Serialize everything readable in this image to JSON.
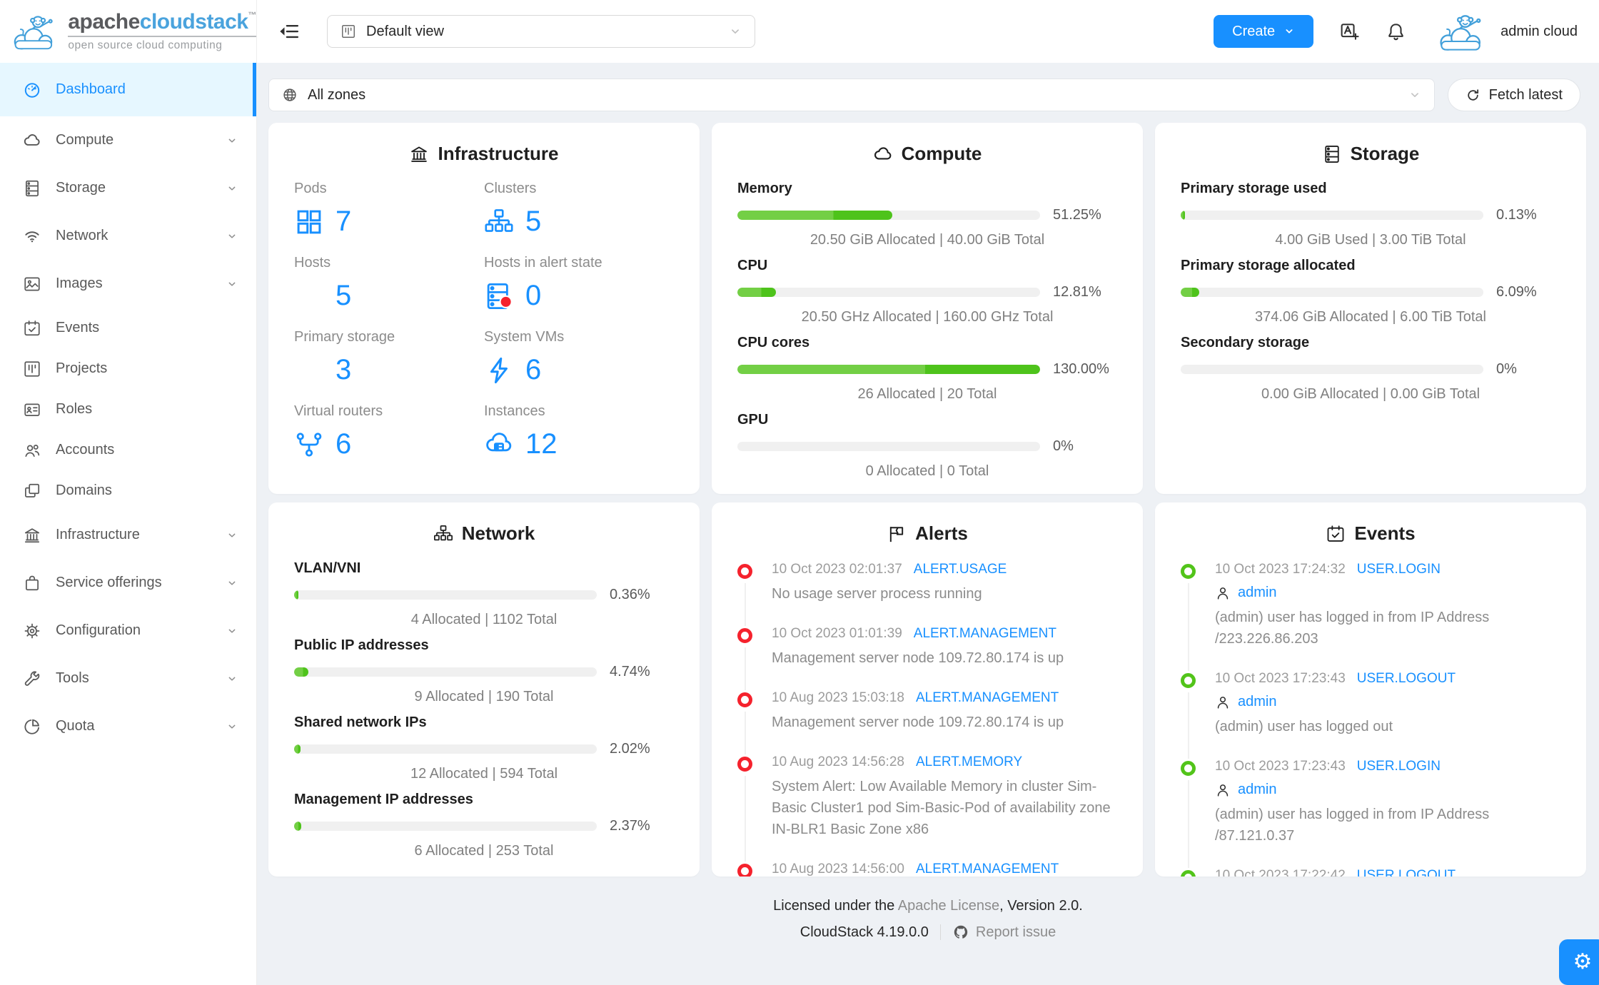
{
  "brand": {
    "name_a": "apache",
    "name_b": "cloudstack",
    "tm": "™",
    "subtitle": "open source cloud computing"
  },
  "topbar": {
    "view_select": "Default view",
    "create_label": "Create",
    "user_name": "admin cloud"
  },
  "zonebar": {
    "zone_select": "All zones",
    "fetch_label": "Fetch latest"
  },
  "sidebar": {
    "items": [
      {
        "label": "Dashboard",
        "icon": "dashboard",
        "active": true,
        "chevron": false
      },
      {
        "label": "Compute",
        "icon": "cloud",
        "chevron": true
      },
      {
        "label": "Storage",
        "icon": "database",
        "chevron": true
      },
      {
        "label": "Network",
        "icon": "wifi",
        "chevron": true
      },
      {
        "label": "Images",
        "icon": "image",
        "chevron": true
      },
      {
        "label": "Events",
        "icon": "calendar",
        "chevron": false
      },
      {
        "label": "Projects",
        "icon": "project",
        "chevron": false
      },
      {
        "label": "Roles",
        "icon": "idcard",
        "chevron": false
      },
      {
        "label": "Accounts",
        "icon": "team",
        "chevron": false
      },
      {
        "label": "Domains",
        "icon": "copy",
        "chevron": false
      },
      {
        "label": "Infrastructure",
        "icon": "bank",
        "chevron": true
      },
      {
        "label": "Service offerings",
        "icon": "bag",
        "chevron": true
      },
      {
        "label": "Configuration",
        "icon": "gear",
        "chevron": true
      },
      {
        "label": "Tools",
        "icon": "wrench",
        "chevron": true
      },
      {
        "label": "Quota",
        "icon": "pie",
        "chevron": true
      }
    ]
  },
  "cards": {
    "infrastructure": {
      "title": "Infrastructure",
      "icon": "bank",
      "stats": [
        {
          "label": "Pods",
          "value": "7",
          "icon": "appstore"
        },
        {
          "label": "Clusters",
          "value": "5",
          "icon": "cluster"
        },
        {
          "label": "Hosts",
          "value": "5",
          "icon": "server"
        },
        {
          "label": "Hosts in alert state",
          "value": "0",
          "icon": "server-alert"
        },
        {
          "label": "Primary storage",
          "value": "3",
          "icon": "server"
        },
        {
          "label": "System VMs",
          "value": "6",
          "icon": "bolt"
        },
        {
          "label": "Virtual routers",
          "value": "6",
          "icon": "fork"
        },
        {
          "label": "Instances",
          "value": "12",
          "icon": "cloudserver"
        }
      ]
    },
    "compute": {
      "title": "Compute",
      "icon": "cloud",
      "metrics": [
        {
          "label": "Memory",
          "pct": "51.25%",
          "fill": 51.25,
          "detail": "20.50 GiB Allocated | 40.00 GiB Total"
        },
        {
          "label": "CPU",
          "pct": "12.81%",
          "fill": 12.81,
          "detail": "20.50 GHz Allocated | 160.00 GHz Total"
        },
        {
          "label": "CPU cores",
          "pct": "130.00%",
          "fill": 100,
          "detail": "26 Allocated | 20 Total"
        },
        {
          "label": "GPU",
          "pct": "0%",
          "fill": 0,
          "detail": "0 Allocated | 0 Total"
        }
      ]
    },
    "storage": {
      "title": "Storage",
      "icon": "database",
      "metrics": [
        {
          "label": "Primary storage used",
          "pct": "0.13%",
          "fill": 0.13,
          "detail": "4.00 GiB Used | 3.00 TiB Total"
        },
        {
          "label": "Primary storage allocated",
          "pct": "6.09%",
          "fill": 6.09,
          "detail": "374.06 GiB Allocated | 6.00 TiB Total"
        },
        {
          "label": "Secondary storage",
          "pct": "0%",
          "fill": 0,
          "detail": "0.00 GiB Allocated | 0.00 GiB Total"
        }
      ]
    },
    "network": {
      "title": "Network",
      "icon": "cluster",
      "metrics": [
        {
          "label": "VLAN/VNI",
          "pct": "0.36%",
          "fill": 0.36,
          "detail": "4 Allocated | 1102 Total"
        },
        {
          "label": "Public IP addresses",
          "pct": "4.74%",
          "fill": 4.74,
          "detail": "9 Allocated | 190 Total"
        },
        {
          "label": "Shared network IPs",
          "pct": "2.02%",
          "fill": 2.02,
          "detail": "12 Allocated | 594 Total"
        },
        {
          "label": "Management IP addresses",
          "pct": "2.37%",
          "fill": 2.37,
          "detail": "6 Allocated | 253 Total"
        }
      ]
    },
    "alerts": {
      "title": "Alerts",
      "icon": "flag",
      "items": [
        {
          "time": "10 Oct 2023 02:01:37",
          "type": "ALERT.USAGE",
          "text": "No usage server process running"
        },
        {
          "time": "10 Oct 2023 01:01:39",
          "type": "ALERT.MANAGEMENT",
          "text": "Management server node 109.72.80.174 is up"
        },
        {
          "time": "10 Aug 2023 15:03:18",
          "type": "ALERT.MANAGEMENT",
          "text": "Management server node 109.72.80.174 is up"
        },
        {
          "time": "10 Aug 2023 14:56:28",
          "type": "ALERT.MEMORY",
          "text": "System Alert: Low Available Memory in cluster Sim-Basic Cluster1 pod Sim-Basic-Pod of availability zone IN-BLR1 Basic Zone x86"
        },
        {
          "time": "10 Aug 2023 14:56:00",
          "type": "ALERT.MANAGEMENT",
          "text": ""
        }
      ]
    },
    "events": {
      "title": "Events",
      "icon": "calendar",
      "items": [
        {
          "time": "10 Oct 2023 17:24:32",
          "type": "USER.LOGIN",
          "user": "admin",
          "text": "(admin) user has logged in from IP Address /223.226.86.203"
        },
        {
          "time": "10 Oct 2023 17:23:43",
          "type": "USER.LOGOUT",
          "user": "admin",
          "text": "(admin) user has logged out"
        },
        {
          "time": "10 Oct 2023 17:23:43",
          "type": "USER.LOGIN",
          "user": "admin",
          "text": "(admin) user has logged in from IP Address /87.121.0.37"
        },
        {
          "time": "10 Oct 2023 17:22:42",
          "type": "USER.LOGOUT",
          "user": "",
          "text": ""
        }
      ]
    }
  },
  "footer": {
    "license_prefix": "Licensed under the ",
    "license_link": "Apache License",
    "license_suffix": ", Version 2.0.",
    "version": "CloudStack 4.19.0.0",
    "report_label": "Report issue",
    "gear": "⚙"
  },
  "colors": {
    "primary": "#1890ff",
    "active_bg": "#e6f7ff",
    "progress_green": "#52c41a",
    "alert_red": "#f5222d",
    "event_green": "#52c41a",
    "page_bg": "#eef1f5"
  }
}
